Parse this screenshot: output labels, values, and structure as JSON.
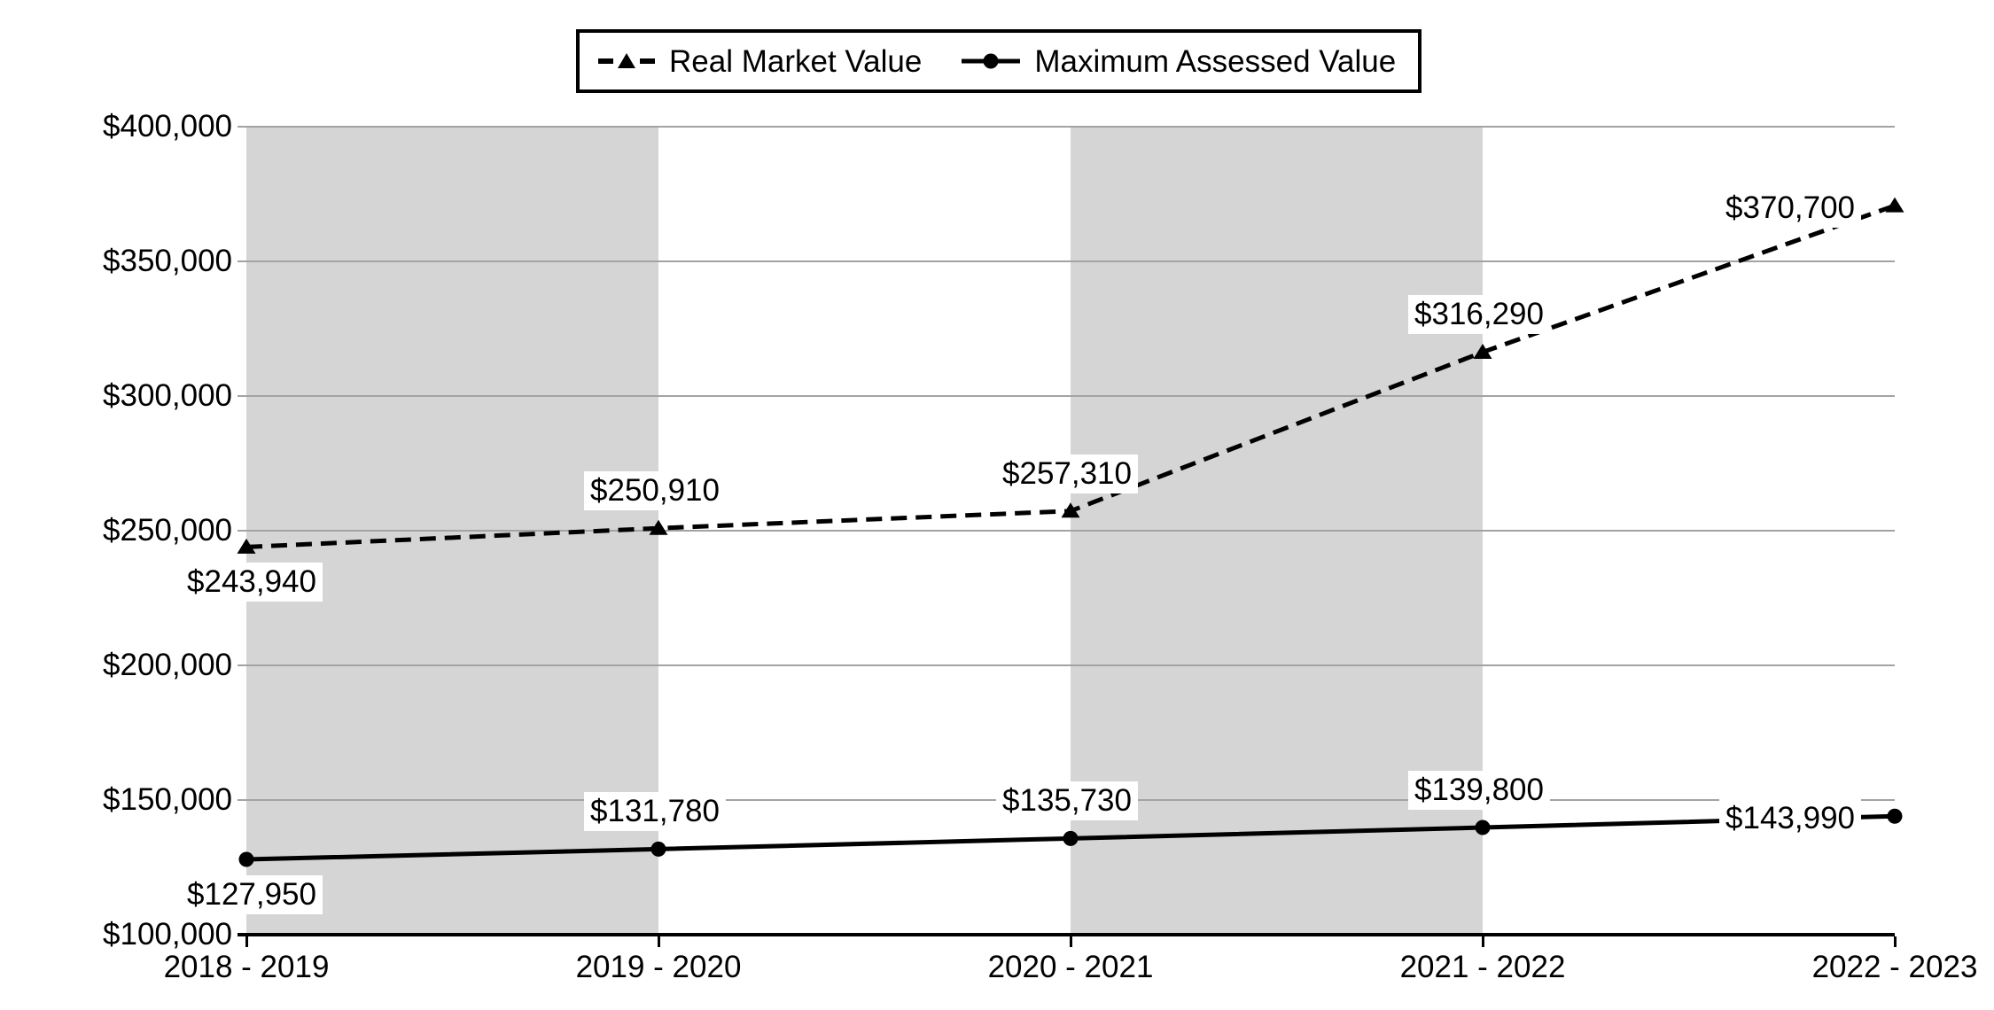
{
  "chart_data": {
    "type": "line",
    "title": "",
    "categories": [
      "2018 - 2019",
      "2019 - 2020",
      "2020 - 2021",
      "2021 - 2022",
      "2022 - 2023"
    ],
    "series": [
      {
        "name": "Real Market Value",
        "line_style": "dashed",
        "marker": "triangle",
        "color": "#000000",
        "values": [
          243940,
          250910,
          257310,
          316290,
          370700
        ],
        "data_labels": [
          "$243,940",
          "$250,910",
          "$257,310",
          "$316,290",
          "$370,700"
        ],
        "label_placements": [
          "below",
          "above",
          "above",
          "above",
          "left"
        ]
      },
      {
        "name": "Maximum Assessed Value",
        "line_style": "solid",
        "marker": "circle",
        "color": "#000000",
        "values": [
          127950,
          131780,
          135730,
          139800,
          143990
        ],
        "data_labels": [
          "$127,950",
          "$131,780",
          "$135,730",
          "$139,800",
          "$143,990"
        ],
        "label_placements": [
          "below",
          "above",
          "above",
          "above",
          "left"
        ]
      }
    ],
    "ylim": [
      100000,
      400000
    ],
    "yticks": [
      {
        "value": 400000,
        "label": "$400,000"
      },
      {
        "value": 350000,
        "label": "$350,000"
      },
      {
        "value": 300000,
        "label": "$300,000"
      },
      {
        "value": 250000,
        "label": "$250,000"
      },
      {
        "value": 200000,
        "label": "$200,000"
      },
      {
        "value": 150000,
        "label": "$150,000"
      },
      {
        "value": 100000,
        "label": "$100,000"
      }
    ],
    "grid": "horizontal",
    "legend_position": "top-center",
    "shaded_band_column_spans": [
      [
        0,
        1
      ],
      [
        2,
        3
      ]
    ],
    "colors": {
      "line": "#000000",
      "shaded_band": "#d5d5d5",
      "gridline": "#a3a3a3",
      "axis": "#000000",
      "data_label_bg": "#ffffff",
      "background": "#ffffff"
    }
  }
}
